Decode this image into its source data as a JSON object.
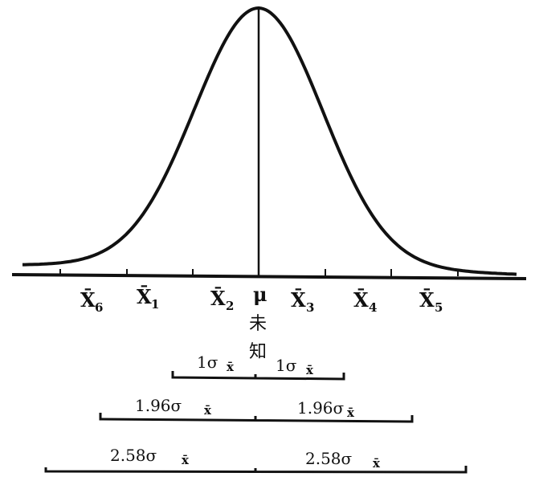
{
  "axis_labels": [
    {
      "base": "X̄",
      "sub": "6"
    },
    {
      "base": "X̄",
      "sub": "1"
    },
    {
      "base": "X̄",
      "sub": "2"
    },
    {
      "base": "μ",
      "sub": ""
    },
    {
      "base": "X̄",
      "sub": "3"
    },
    {
      "base": "X̄",
      "sub": "4"
    },
    {
      "base": "X̄",
      "sub": "5"
    }
  ],
  "unknown_label": [
    "未",
    "知"
  ],
  "intervals": [
    {
      "multiplier": "1",
      "left_label": "1σ",
      "right_label": "1σ",
      "sub": "x̄"
    },
    {
      "multiplier": "1.96",
      "left_label": "1.96σ",
      "right_label": "1.96σ",
      "sub": "x̄"
    },
    {
      "multiplier": "2.58",
      "left_label": "2.58σ",
      "right_label": "2.58σ",
      "sub": "x̄"
    }
  ],
  "color": "#111111"
}
